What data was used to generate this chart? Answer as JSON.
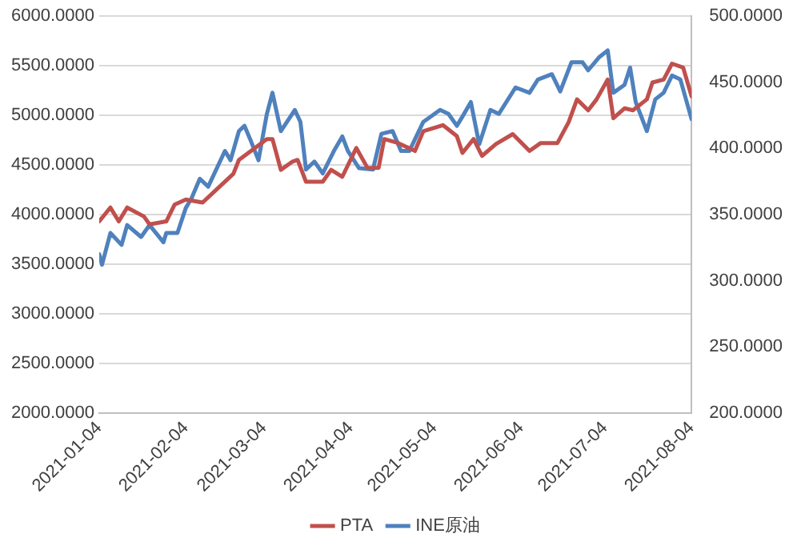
{
  "chart_data": {
    "type": "line",
    "grid": "y",
    "legend": "bottom",
    "marker": "none",
    "line_style": "solid",
    "xlim": [
      "2021-01-04",
      "2021-08-04"
    ],
    "xticks": [
      {
        "value": "2021-01-04",
        "label": "2021-01-04"
      },
      {
        "value": "2021-02-04",
        "label": "2021-02-04"
      },
      {
        "value": "2021-03-04",
        "label": "2021-03-04"
      },
      {
        "value": "2021-04-04",
        "label": "2021-04-04"
      },
      {
        "value": "2021-05-04",
        "label": "2021-05-04"
      },
      {
        "value": "2021-06-04",
        "label": "2021-06-04"
      },
      {
        "value": "2021-07-04",
        "label": "2021-07-04"
      },
      {
        "value": "2021-08-04",
        "label": "2021-08-04"
      }
    ],
    "ylim": [
      2000,
      6000
    ],
    "yticks": [
      {
        "value": 2000,
        "label": "2000.0000"
      },
      {
        "value": 2500,
        "label": "2500.0000"
      },
      {
        "value": 3000,
        "label": "3000.0000"
      },
      {
        "value": 3500,
        "label": "3500.0000"
      },
      {
        "value": 4000,
        "label": "4000.0000"
      },
      {
        "value": 4500,
        "label": "4500.0000"
      },
      {
        "value": 5000,
        "label": "5000.0000"
      },
      {
        "value": 5500,
        "label": "5500.0000"
      },
      {
        "value": 6000,
        "label": "6000.0000"
      }
    ],
    "y2lim": [
      200,
      500
    ],
    "y2ticks": [
      {
        "value": 200,
        "label": "200.0000"
      },
      {
        "value": 250,
        "label": "250.0000"
      },
      {
        "value": 300,
        "label": "300.0000"
      },
      {
        "value": 350,
        "label": "350.0000"
      },
      {
        "value": 400,
        "label": "400.0000"
      },
      {
        "value": 450,
        "label": "450.0000"
      },
      {
        "value": 500,
        "label": "500.0000"
      }
    ],
    "series": [
      {
        "name": "PTA",
        "color": "#c0504d",
        "x": [
          "2021-01-04",
          "2021-01-08",
          "2021-01-11",
          "2021-01-14",
          "2021-01-20",
          "2021-01-22",
          "2021-01-28",
          "2021-01-31",
          "2021-02-04",
          "2021-02-10",
          "2021-02-21",
          "2021-02-23",
          "2021-03-05",
          "2021-03-07",
          "2021-03-10",
          "2021-03-14",
          "2021-03-16",
          "2021-03-19",
          "2021-03-25",
          "2021-03-28",
          "2021-04-01",
          "2021-04-06",
          "2021-04-10",
          "2021-04-14",
          "2021-04-16",
          "2021-04-21",
          "2021-04-27",
          "2021-04-30",
          "2021-05-07",
          "2021-05-12",
          "2021-05-14",
          "2021-05-18",
          "2021-05-21",
          "2021-05-26",
          "2021-06-01",
          "2021-06-07",
          "2021-06-11",
          "2021-06-17",
          "2021-06-21",
          "2021-06-24",
          "2021-06-28",
          "2021-07-01",
          "2021-07-05",
          "2021-07-07",
          "2021-07-11",
          "2021-07-14",
          "2021-07-19",
          "2021-07-21",
          "2021-07-25",
          "2021-07-28",
          "2021-08-01",
          "2021-08-04"
        ],
        "values": [
          3930,
          4070,
          3930,
          4070,
          3980,
          3900,
          3930,
          4100,
          4150,
          4120,
          4410,
          4550,
          4760,
          4760,
          4450,
          4530,
          4550,
          4330,
          4330,
          4450,
          4380,
          4670,
          4470,
          4470,
          4760,
          4720,
          4640,
          4840,
          4900,
          4790,
          4620,
          4760,
          4590,
          4710,
          4810,
          4640,
          4720,
          4720,
          4930,
          5160,
          5050,
          5160,
          5360,
          4970,
          5070,
          5050,
          5160,
          5330,
          5360,
          5520,
          5480,
          5190
        ]
      },
      {
        "name": "INE原油",
        "color": "#4f81bd",
        "axis": "y2",
        "x": [
          "2021-01-04",
          "2021-01-05",
          "2021-01-08",
          "2021-01-12",
          "2021-01-14",
          "2021-01-19",
          "2021-01-22",
          "2021-01-27",
          "2021-01-28",
          "2021-02-01",
          "2021-02-04",
          "2021-02-06",
          "2021-02-09",
          "2021-02-12",
          "2021-02-18",
          "2021-02-20",
          "2021-02-23",
          "2021-02-25",
          "2021-02-27",
          "2021-03-02",
          "2021-03-05",
          "2021-03-07",
          "2021-03-10",
          "2021-03-15",
          "2021-03-17",
          "2021-03-19",
          "2021-03-22",
          "2021-03-25",
          "2021-03-29",
          "2021-04-01",
          "2021-04-03",
          "2021-04-07",
          "2021-04-12",
          "2021-04-15",
          "2021-04-19",
          "2021-04-22",
          "2021-04-25",
          "2021-04-30",
          "2021-05-06",
          "2021-05-09",
          "2021-05-12",
          "2021-05-14",
          "2021-05-17",
          "2021-05-20",
          "2021-05-24",
          "2021-05-27",
          "2021-06-02",
          "2021-06-07",
          "2021-06-10",
          "2021-06-15",
          "2021-06-18",
          "2021-06-22",
          "2021-06-26",
          "2021-06-28",
          "2021-07-02",
          "2021-07-05",
          "2021-07-07",
          "2021-07-11",
          "2021-07-13",
          "2021-07-15",
          "2021-07-19",
          "2021-07-22",
          "2021-07-25",
          "2021-07-28",
          "2021-07-31",
          "2021-08-02",
          "2021-08-04"
        ],
        "values": [
          320,
          312,
          336,
          327,
          342,
          333,
          342,
          329,
          336,
          336,
          355,
          362,
          377,
          371,
          398,
          391,
          413,
          417,
          407,
          391,
          426,
          442,
          413,
          429,
          420,
          384,
          390,
          381,
          398,
          409,
          398,
          385,
          384,
          411,
          413,
          398,
          398,
          420,
          429,
          426,
          417,
          424,
          435,
          403,
          429,
          426,
          446,
          442,
          452,
          456,
          443,
          465,
          465,
          459,
          469,
          474,
          442,
          448,
          461,
          435,
          413,
          437,
          442,
          455,
          452,
          437,
          422
        ]
      }
    ]
  }
}
